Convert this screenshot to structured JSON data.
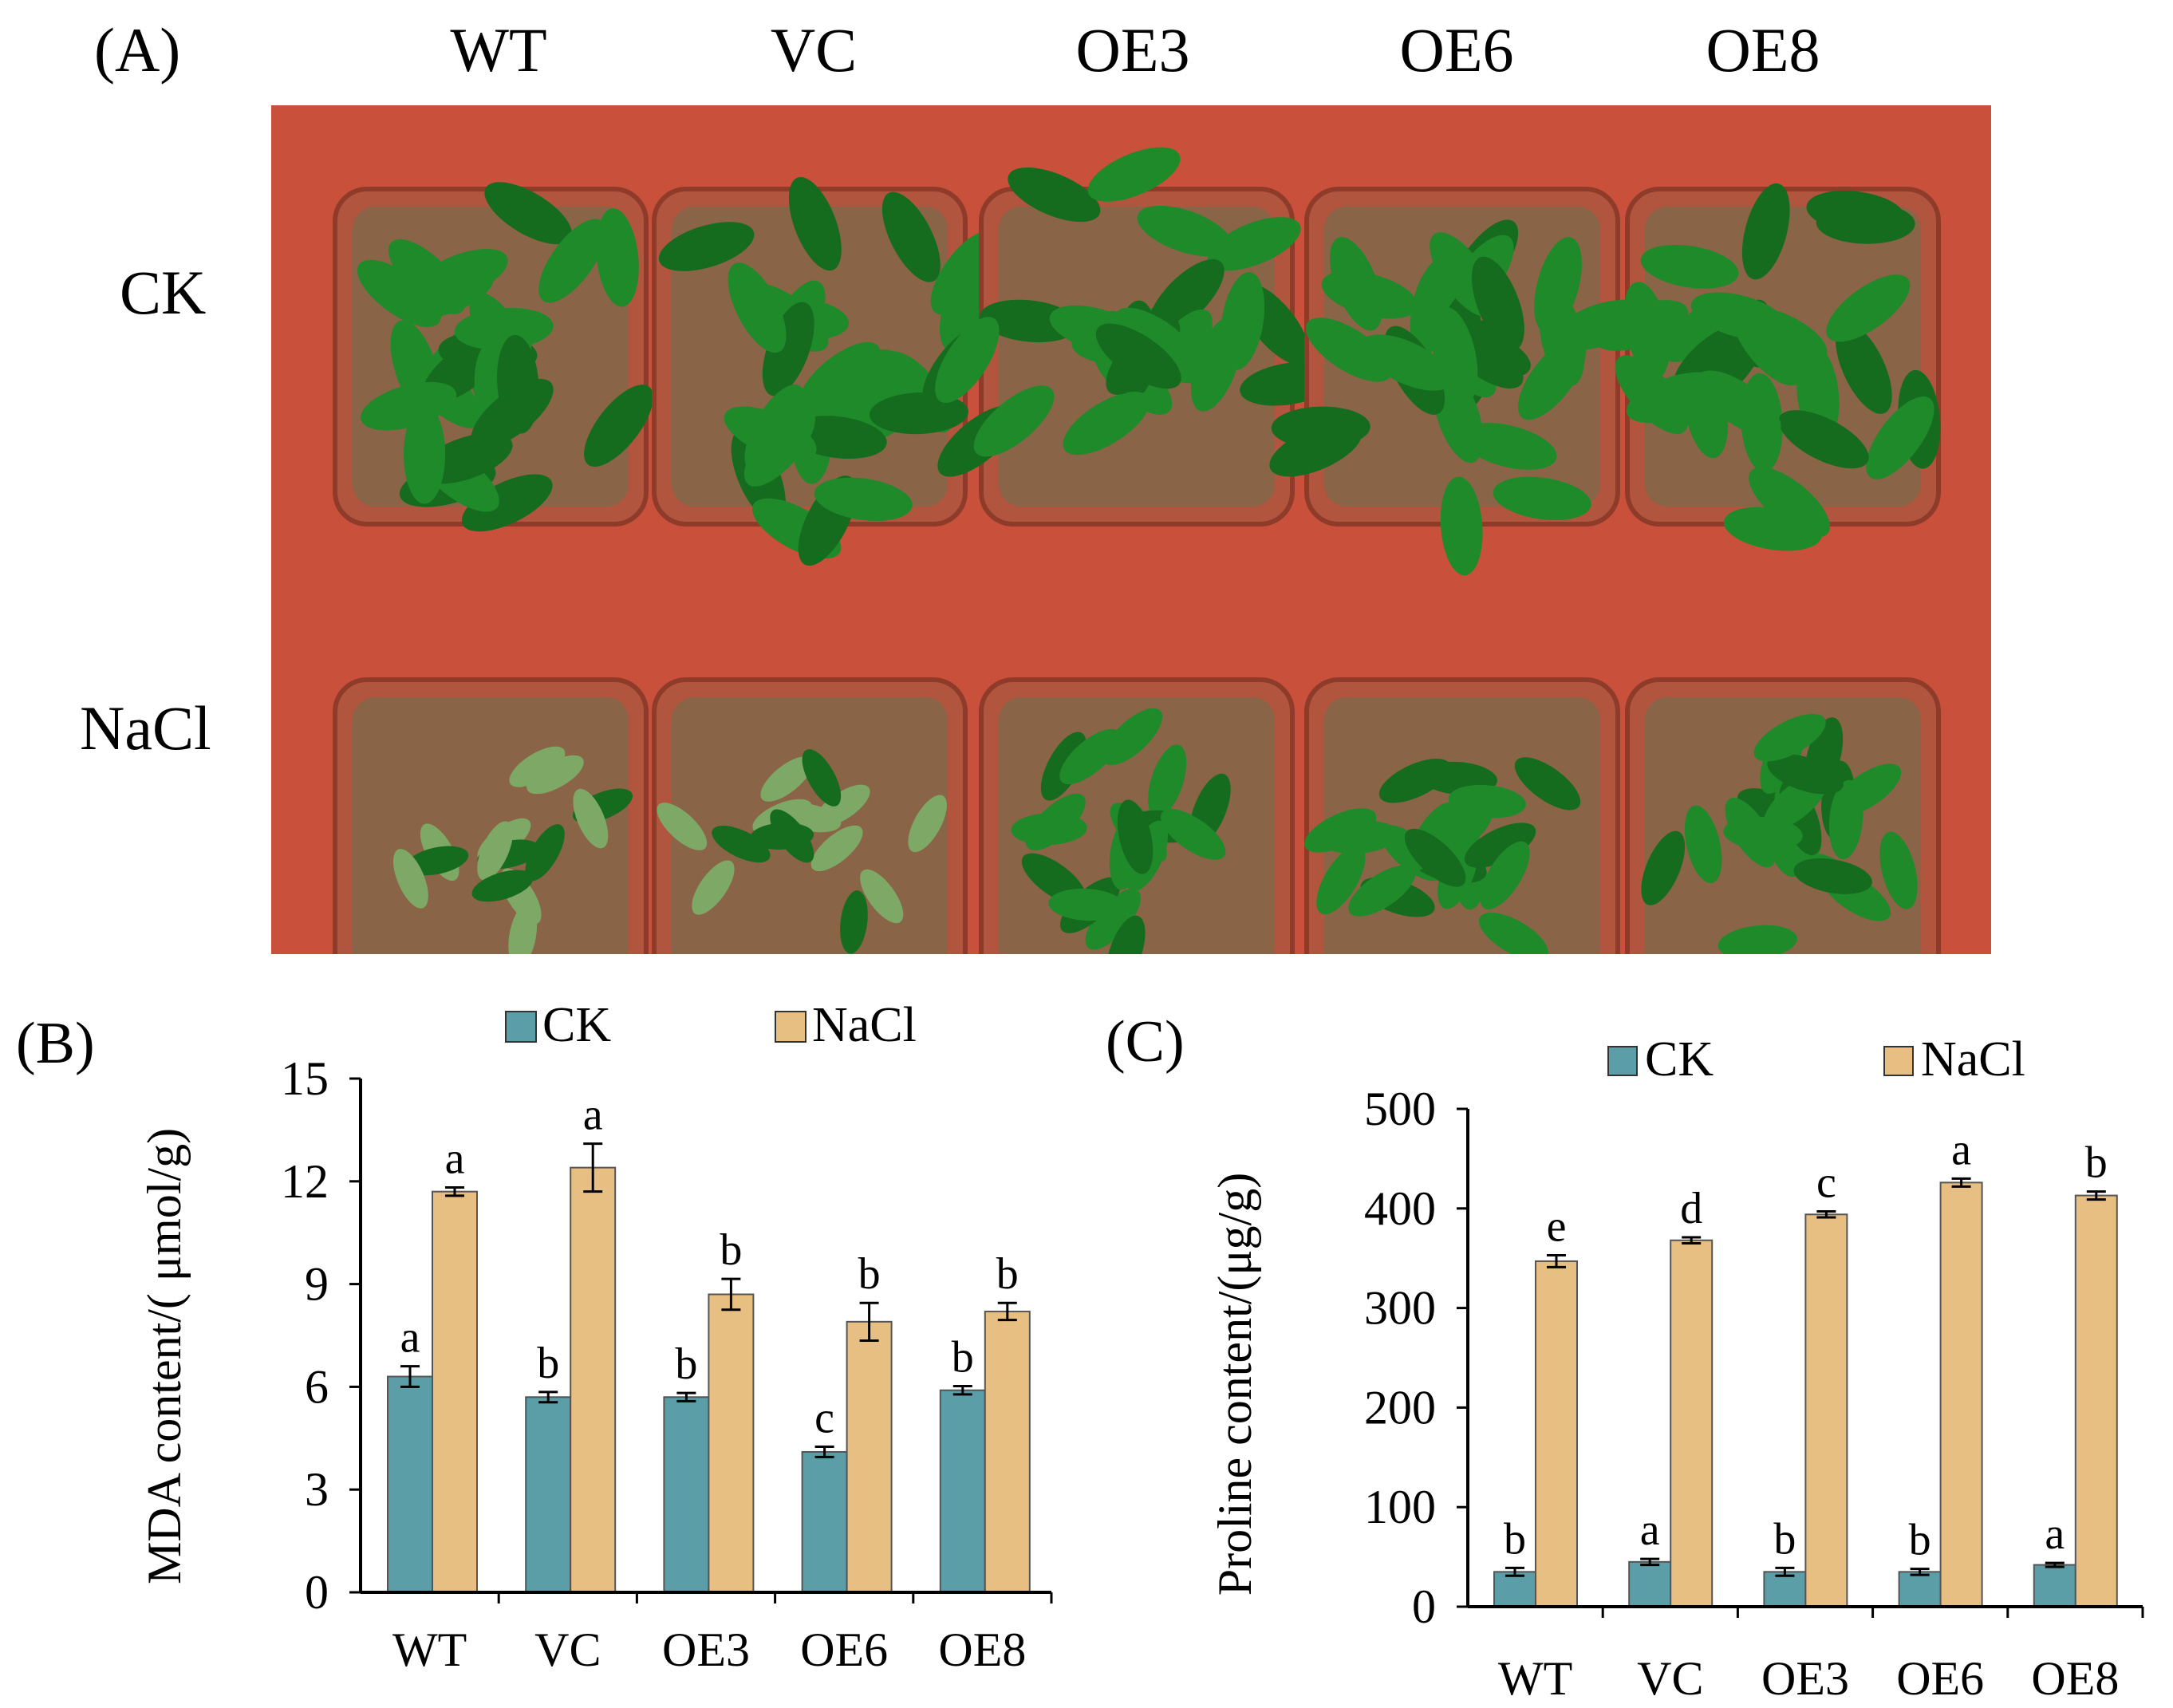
{
  "panelA": {
    "label": "(A)",
    "genotypes": [
      "WT",
      "VC",
      "OE3",
      "OE6",
      "OE8"
    ],
    "rows": [
      "CK",
      "NaCl"
    ],
    "colors": {
      "tray": "#c9503a",
      "pot": "#b2553f",
      "soil": "#8a6446",
      "leaf": "#1f8a2a",
      "leaf_dark": "#156b1e",
      "leaf_pale": "#7da865"
    }
  },
  "chart_data": [
    {
      "panel": "(B)",
      "type": "bar",
      "categories": [
        "WT",
        "VC",
        "OE3",
        "OE6",
        "OE8"
      ],
      "series": [
        {
          "name": "CK",
          "color": "#5b9ea8",
          "values": [
            6.3,
            5.7,
            5.7,
            4.1,
            5.9
          ],
          "errors": [
            0.3,
            0.15,
            0.12,
            0.15,
            0.12
          ],
          "letters": [
            "a",
            "b",
            "b",
            "c",
            "b"
          ]
        },
        {
          "name": "NaCl",
          "color": "#e8bf82",
          "values": [
            11.7,
            12.4,
            8.7,
            7.9,
            8.2
          ],
          "errors": [
            0.12,
            0.7,
            0.45,
            0.55,
            0.25
          ],
          "letters": [
            "a",
            "a",
            "b",
            "b",
            "b"
          ]
        }
      ],
      "ylabel": "MDA content/( μmol/g)",
      "yticks": [
        0,
        3,
        6,
        9,
        12,
        15
      ],
      "ylim": [
        0,
        15
      ],
      "legend": "top"
    },
    {
      "panel": "(C)",
      "type": "bar",
      "categories": [
        "WT",
        "VC",
        "OE3",
        "OE6",
        "OE8"
      ],
      "series": [
        {
          "name": "CK",
          "color": "#5b9ea8",
          "values": [
            35,
            45,
            35,
            35,
            42
          ],
          "errors": [
            4,
            3,
            4,
            3,
            2
          ],
          "letters": [
            "b",
            "a",
            "b",
            "b",
            "a"
          ]
        },
        {
          "name": "NaCl",
          "color": "#e8bf82",
          "values": [
            347,
            368,
            394,
            426,
            413
          ],
          "errors": [
            6,
            3,
            3,
            4,
            4
          ],
          "letters": [
            "e",
            "d",
            "c",
            "a",
            "b"
          ]
        }
      ],
      "ylabel": "Proline content/(μg/g)",
      "yticks": [
        0,
        100,
        200,
        300,
        400,
        500
      ],
      "ylim": [
        0,
        500
      ],
      "legend": "top"
    }
  ]
}
